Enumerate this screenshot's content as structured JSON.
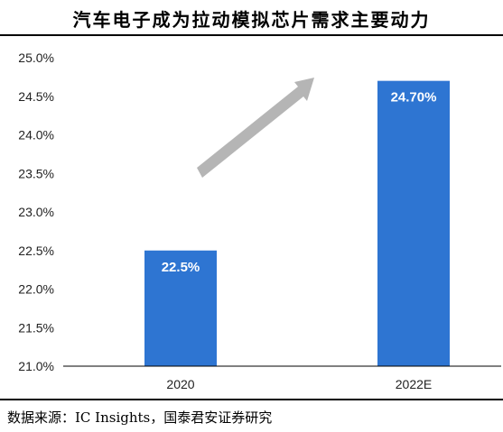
{
  "title": "汽车电子成为拉动模拟芯片需求主要动力",
  "source": "数据来源：IC Insights，国泰君安证券研究",
  "colors": {
    "bar": "#2e75d2",
    "arrow": "#b5b5b5",
    "axis": "#000000",
    "label": "#ffffff"
  },
  "chart_data": {
    "type": "bar",
    "categories": [
      "2020",
      "2022E"
    ],
    "values": [
      22.5,
      24.7
    ],
    "data_labels": [
      "22.5%",
      "24.70%"
    ],
    "ylim": [
      21.0,
      25.0
    ],
    "yticks": [
      "21.0%",
      "21.5%",
      "22.0%",
      "22.5%",
      "23.0%",
      "23.5%",
      "24.0%",
      "24.5%",
      "25.0%"
    ],
    "ytick_values": [
      21.0,
      21.5,
      22.0,
      22.5,
      23.0,
      23.5,
      24.0,
      24.5,
      25.0
    ],
    "grid": false,
    "annotation": "up-arrow"
  }
}
